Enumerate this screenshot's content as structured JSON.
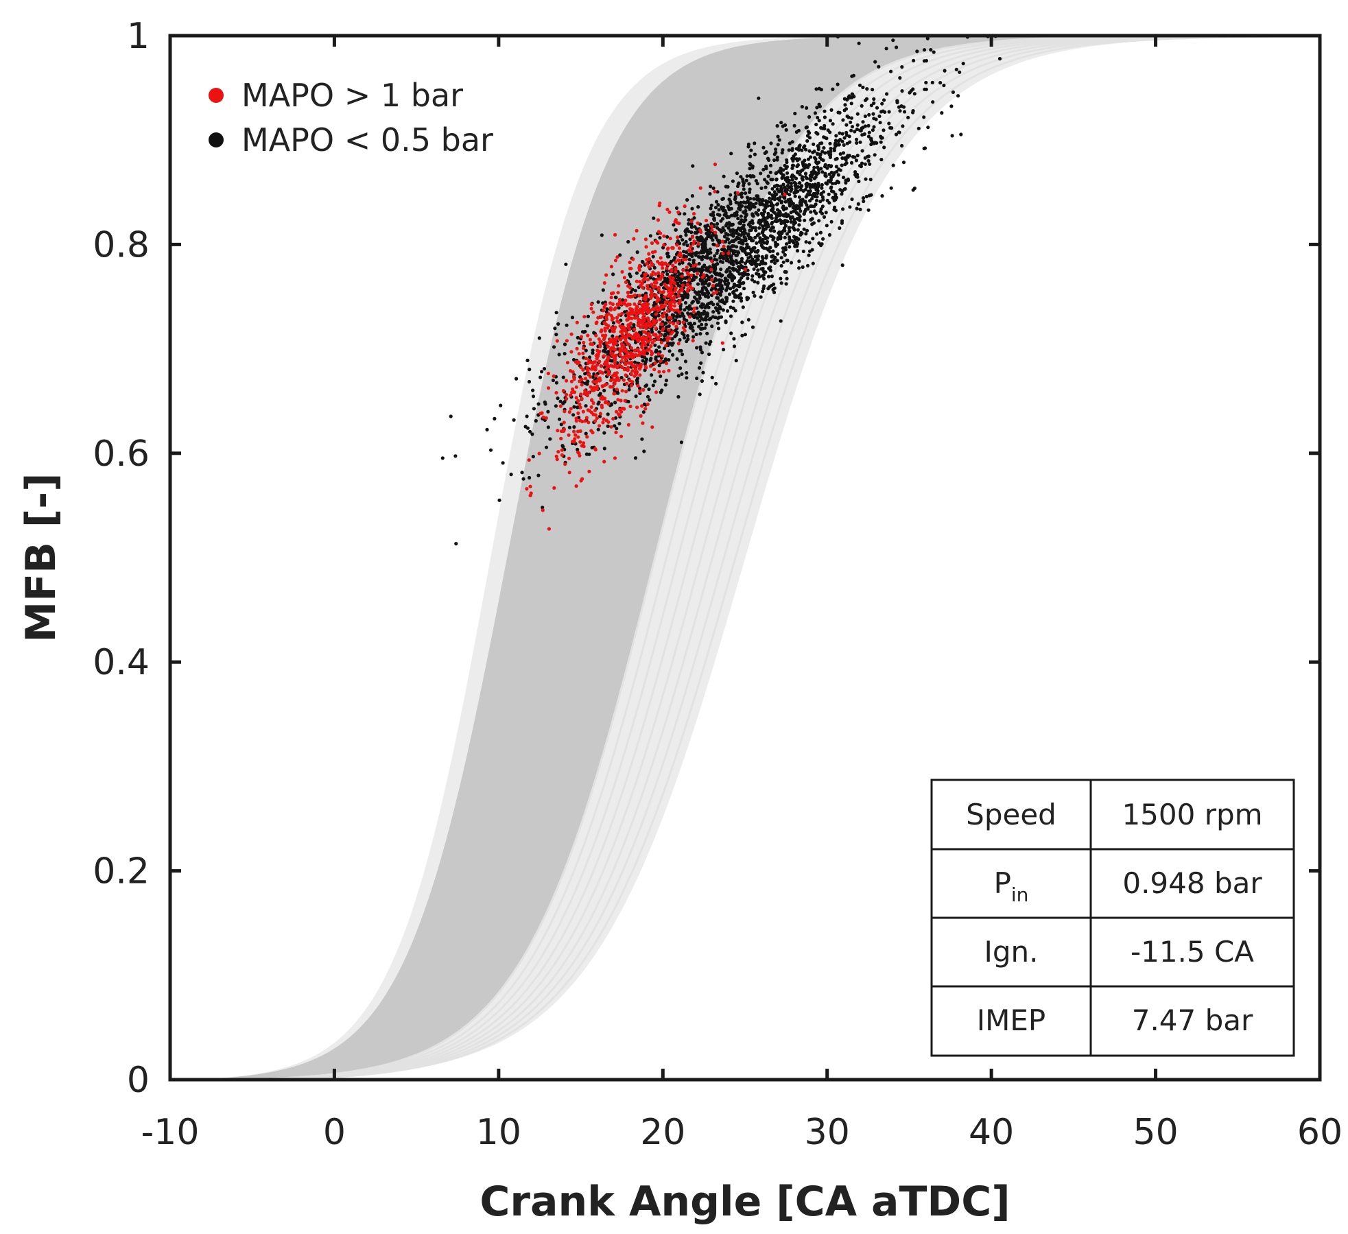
{
  "chart_data": {
    "type": "scatter",
    "xlabel": "Crank Angle [CA aTDC]",
    "ylabel": "MFB [-]",
    "xlim": [
      -10,
      60
    ],
    "ylim": [
      0,
      1
    ],
    "x_ticks": [
      "-10",
      "0",
      "10",
      "20",
      "30",
      "40",
      "50",
      "60"
    ],
    "y_ticks": [
      "0",
      "0.2",
      "0.4",
      "0.6",
      "0.8",
      "1"
    ],
    "x_tick_values": [
      -10,
      0,
      10,
      20,
      30,
      40,
      50,
      60
    ],
    "y_tick_values": [
      0,
      0.2,
      0.4,
      0.6,
      0.8,
      1
    ],
    "band": {
      "description_curves": "MFB curves (many cycles)",
      "color": "#c8c8c8",
      "outer_color": "#ececec",
      "fast_curve": {
        "ca50": 10.5,
        "duration": 20
      },
      "slow_curve": {
        "ca50": 19.5,
        "duration": 26
      },
      "outer_fast_curve": {
        "ca50": 9.5,
        "duration": 19
      },
      "outer_slow_curve": {
        "ca50": 25,
        "duration": 30
      }
    },
    "series": [
      {
        "name": "MAPO > 1 bar",
        "color": "#ee1111",
        "points_count": 900,
        "center": [
          18,
          0.71
        ],
        "spread": [
          2.2,
          0.035
        ],
        "slope": 0.018
      },
      {
        "name": "MAPO < 0.5 bar",
        "color": "#111111",
        "points_count": 2600,
        "center": [
          24,
          0.79
        ],
        "spread": [
          5.0,
          0.035
        ],
        "slope": 0.0135
      }
    ],
    "legend": [
      {
        "label": "MAPO > 1 bar",
        "color": "#ee1111"
      },
      {
        "label": "MAPO < 0.5 bar",
        "color": "#111111"
      }
    ],
    "legend_position": "top-left"
  },
  "info_table": {
    "rows": [
      {
        "label": "Speed",
        "value": "1500 rpm"
      },
      {
        "label": "P",
        "sub": "in",
        "value": "0.948 bar"
      },
      {
        "label": "Ign.",
        "value": "-11.5 CA"
      },
      {
        "label": "IMEP",
        "value": "7.47 bar"
      }
    ],
    "position": "bottom-right"
  }
}
